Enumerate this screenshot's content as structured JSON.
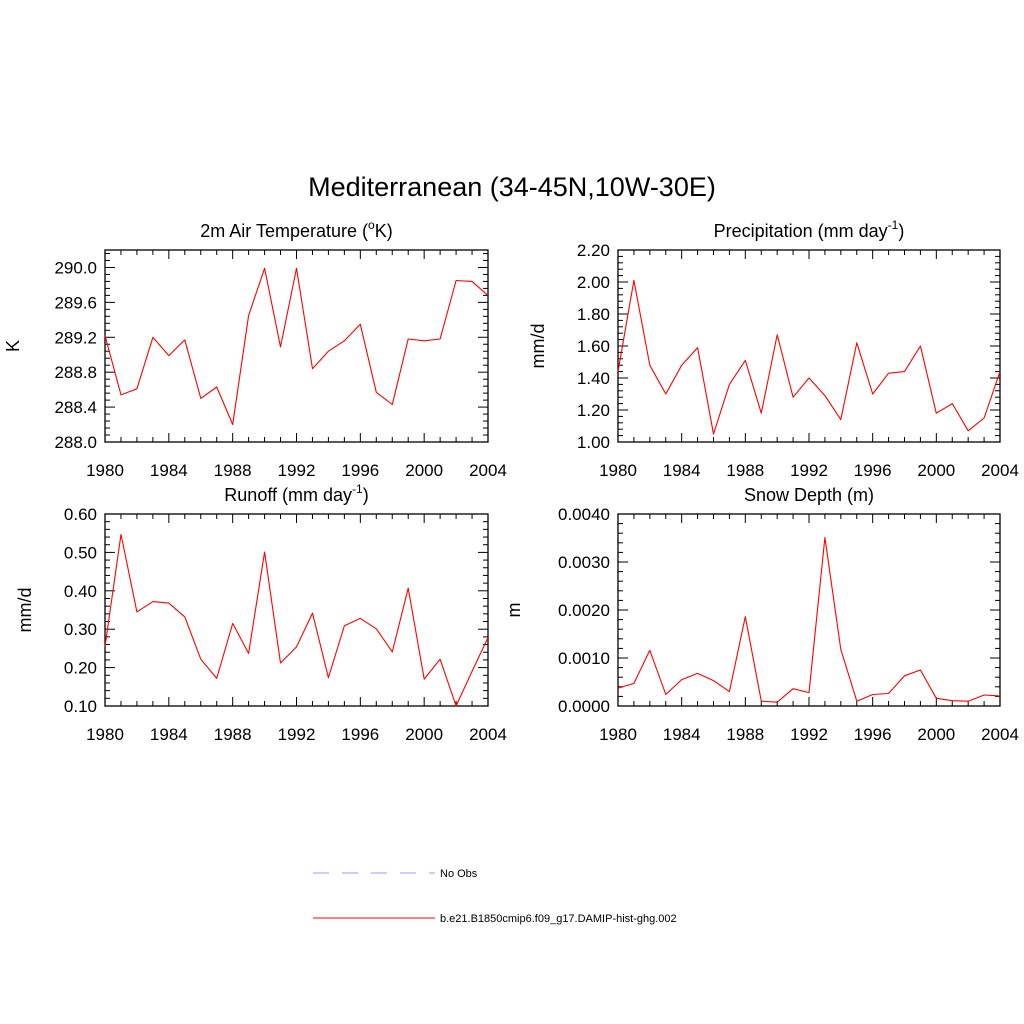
{
  "title": "Mediterranean (34-45N,10W-30E)",
  "legend": [
    {
      "label": "No Obs",
      "color": "#9999ff",
      "style": "dashed"
    },
    {
      "label": "b.e21.B1850cmip6.f09_g17.DAMIP-hist-ghg.002",
      "color": "#ff0000",
      "style": "solid"
    }
  ],
  "chart_data": [
    {
      "type": "line",
      "title": "2m Air Temperature (",
      "title_sup": "o",
      "title_after": "K)",
      "ylabel": "K",
      "xlim": [
        1980,
        2004
      ],
      "xticks": [
        "1980",
        "1984",
        "1988",
        "1992",
        "1996",
        "2000",
        "2004"
      ],
      "ylim": [
        288.0,
        290.2
      ],
      "yticks": [
        "288.0",
        "288.4",
        "288.8",
        "289.2",
        "289.6",
        "290.0"
      ],
      "x": [
        1980,
        1981,
        1982,
        1983,
        1984,
        1985,
        1986,
        1987,
        1988,
        1989,
        1990,
        1991,
        1992,
        1993,
        1994,
        1995,
        1996,
        1997,
        1998,
        1999,
        2000,
        2001,
        2002,
        2003,
        2004
      ],
      "series": [
        {
          "color": "#ff0000",
          "values": [
            289.22,
            288.54,
            288.61,
            289.2,
            288.99,
            289.17,
            288.5,
            288.63,
            288.2,
            289.45,
            289.99,
            289.09,
            289.99,
            288.84,
            289.04,
            289.16,
            289.35,
            288.57,
            288.43,
            289.18,
            289.16,
            289.18,
            289.85,
            289.84,
            289.68
          ]
        }
      ]
    },
    {
      "type": "line",
      "title": "Precipitation (mm day",
      "title_sup": "-1",
      "title_after": ")",
      "ylabel": "mm/d",
      "xlim": [
        1980,
        2004
      ],
      "xticks": [
        "1980",
        "1984",
        "1988",
        "1992",
        "1996",
        "2000",
        "2004"
      ],
      "ylim": [
        1.0,
        2.2
      ],
      "yticks": [
        "1.00",
        "1.20",
        "1.40",
        "1.60",
        "1.80",
        "2.00",
        "2.20"
      ],
      "x": [
        1980,
        1981,
        1982,
        1983,
        1984,
        1985,
        1986,
        1987,
        1988,
        1989,
        1990,
        1991,
        1992,
        1993,
        1994,
        1995,
        1996,
        1997,
        1998,
        1999,
        2000,
        2001,
        2002,
        2003,
        2004
      ],
      "series": [
        {
          "color": "#ff0000",
          "values": [
            1.44,
            2.01,
            1.48,
            1.3,
            1.48,
            1.59,
            1.05,
            1.36,
            1.51,
            1.18,
            1.67,
            1.28,
            1.4,
            1.29,
            1.14,
            1.62,
            1.3,
            1.43,
            1.44,
            1.6,
            1.18,
            1.24,
            1.07,
            1.15,
            1.44
          ]
        }
      ]
    },
    {
      "type": "line",
      "title": "Runoff (mm day",
      "title_sup": "-1",
      "title_after": ")",
      "ylabel": "mm/d",
      "xlim": [
        1980,
        2004
      ],
      "xticks": [
        "1980",
        "1984",
        "1988",
        "1992",
        "1996",
        "2000",
        "2004"
      ],
      "ylim": [
        0.1,
        0.6
      ],
      "yticks": [
        "0.10",
        "0.20",
        "0.30",
        "0.40",
        "0.50",
        "0.60"
      ],
      "x": [
        1980,
        1981,
        1982,
        1983,
        1984,
        1985,
        1986,
        1987,
        1988,
        1989,
        1990,
        1991,
        1992,
        1993,
        1994,
        1995,
        1996,
        1997,
        1998,
        1999,
        2000,
        2001,
        2002,
        2003,
        2004
      ],
      "series": [
        {
          "color": "#ff0000",
          "values": [
            0.255,
            0.547,
            0.345,
            0.372,
            0.368,
            0.332,
            0.222,
            0.172,
            0.315,
            0.237,
            0.501,
            0.212,
            0.254,
            0.342,
            0.174,
            0.309,
            0.328,
            0.301,
            0.241,
            0.407,
            0.17,
            0.222,
            0.1,
            0.19,
            0.278
          ]
        }
      ]
    },
    {
      "type": "line",
      "title": "Snow Depth (m)",
      "title_sup": "",
      "title_after": "",
      "ylabel": "m",
      "xlim": [
        1980,
        2004
      ],
      "xticks": [
        "1980",
        "1984",
        "1988",
        "1992",
        "1996",
        "2000",
        "2004"
      ],
      "ylim": [
        0.0,
        0.004
      ],
      "yticks": [
        "0.0000",
        "0.0010",
        "0.0020",
        "0.0030",
        "0.0040"
      ],
      "x": [
        1980,
        1981,
        1982,
        1983,
        1984,
        1985,
        1986,
        1987,
        1988,
        1989,
        1990,
        1991,
        1992,
        1993,
        1994,
        1995,
        1996,
        1997,
        1998,
        1999,
        2000,
        2001,
        2002,
        2003,
        2004
      ],
      "series": [
        {
          "color": "#ff0000",
          "values": [
            0.00037,
            0.00047,
            0.00116,
            0.00024,
            0.00055,
            0.00068,
            0.00053,
            0.0003,
            0.00186,
            0.0001,
            8e-05,
            0.00036,
            0.00028,
            0.00351,
            0.00118,
            0.0001,
            0.00024,
            0.00026,
            0.00063,
            0.00075,
            0.00016,
            0.00011,
            0.0001,
            0.00023,
            0.00021
          ]
        }
      ]
    }
  ]
}
